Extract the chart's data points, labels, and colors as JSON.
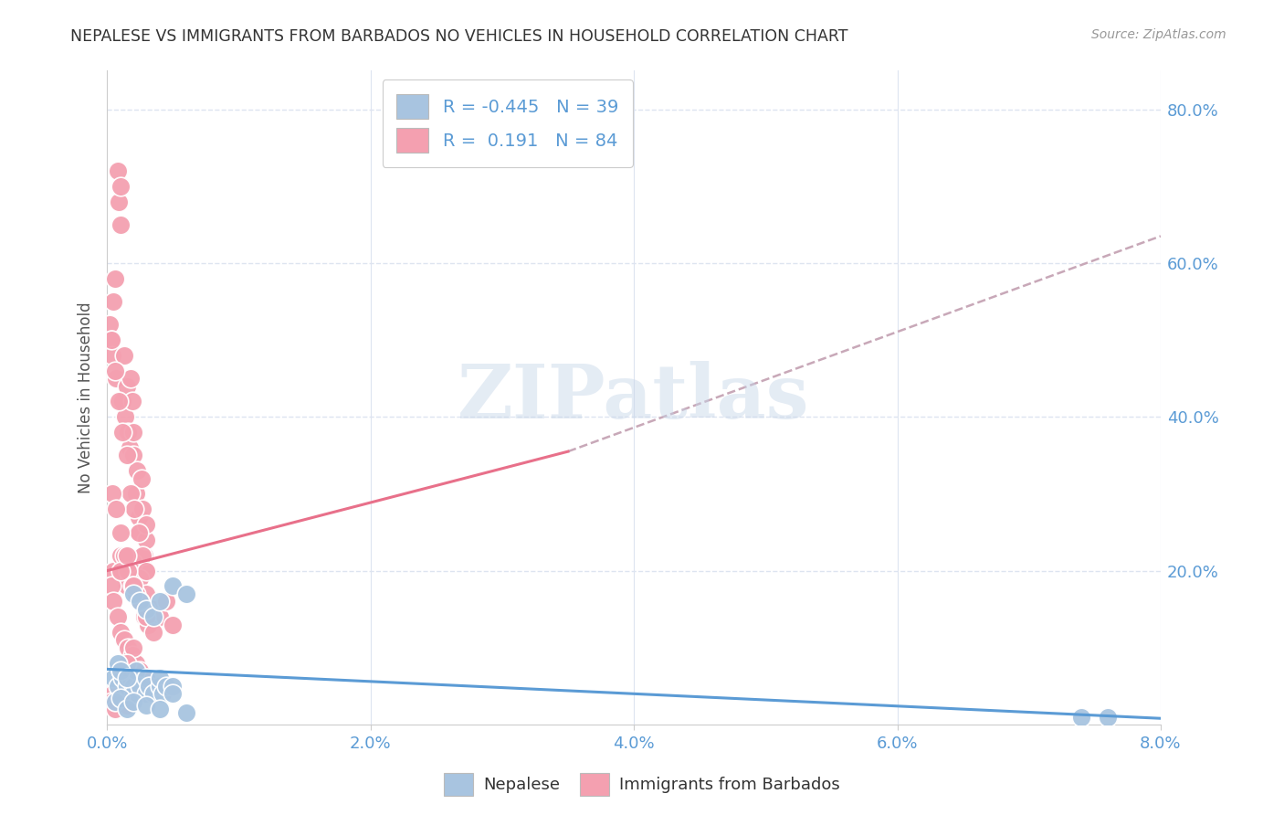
{
  "title": "NEPALESE VS IMMIGRANTS FROM BARBADOS NO VEHICLES IN HOUSEHOLD CORRELATION CHART",
  "source": "Source: ZipAtlas.com",
  "ylabel": "No Vehicles in Household",
  "xlim": [
    0.0,
    0.08
  ],
  "ylim": [
    0.0,
    0.85
  ],
  "xtick_labels": [
    "0.0%",
    "2.0%",
    "4.0%",
    "6.0%",
    "8.0%"
  ],
  "xtick_values": [
    0.0,
    0.02,
    0.04,
    0.06,
    0.08
  ],
  "ytick_labels": [
    "20.0%",
    "40.0%",
    "60.0%",
    "80.0%"
  ],
  "ytick_values": [
    0.2,
    0.4,
    0.6,
    0.8
  ],
  "nepalese_color": "#a8c4e0",
  "barbados_color": "#f4a0b0",
  "nepalese_R": -0.445,
  "nepalese_N": 39,
  "barbados_R": 0.191,
  "barbados_N": 84,
  "nepalese_line_color": "#5b9bd5",
  "barbados_line_color": "#e8708a",
  "dashed_line_color": "#c8a8b8",
  "background_color": "#ffffff",
  "grid_color": "#dde4f0",
  "watermark": "ZIPatlas",
  "nepalese_scatter_x": [
    0.0005,
    0.0008,
    0.001,
    0.0012,
    0.0015,
    0.0018,
    0.002,
    0.002,
    0.0022,
    0.0025,
    0.003,
    0.003,
    0.0032,
    0.0035,
    0.004,
    0.004,
    0.0042,
    0.0045,
    0.005,
    0.005,
    0.0008,
    0.001,
    0.0015,
    0.002,
    0.0025,
    0.003,
    0.0035,
    0.004,
    0.005,
    0.006,
    0.0006,
    0.001,
    0.0015,
    0.002,
    0.003,
    0.004,
    0.006,
    0.074,
    0.076
  ],
  "nepalese_scatter_y": [
    0.06,
    0.05,
    0.07,
    0.06,
    0.05,
    0.06,
    0.05,
    0.04,
    0.07,
    0.05,
    0.04,
    0.06,
    0.05,
    0.04,
    0.05,
    0.06,
    0.04,
    0.05,
    0.05,
    0.04,
    0.08,
    0.07,
    0.06,
    0.17,
    0.16,
    0.15,
    0.14,
    0.16,
    0.18,
    0.17,
    0.03,
    0.035,
    0.02,
    0.03,
    0.025,
    0.02,
    0.015,
    0.01,
    0.01
  ],
  "barbados_scatter_x": [
    0.0002,
    0.0003,
    0.0004,
    0.0005,
    0.0006,
    0.0007,
    0.0008,
    0.0009,
    0.001,
    0.001,
    0.0012,
    0.0013,
    0.0014,
    0.0015,
    0.0016,
    0.0017,
    0.0018,
    0.0019,
    0.002,
    0.002,
    0.0022,
    0.0023,
    0.0024,
    0.0025,
    0.0026,
    0.0027,
    0.0028,
    0.003,
    0.003,
    0.003,
    0.0005,
    0.001,
    0.0015,
    0.002,
    0.0025,
    0.003,
    0.0035,
    0.004,
    0.0045,
    0.005,
    0.0003,
    0.0006,
    0.0009,
    0.0012,
    0.0015,
    0.0018,
    0.0021,
    0.0024,
    0.0027,
    0.003,
    0.0004,
    0.0007,
    0.001,
    0.0013,
    0.0016,
    0.0019,
    0.0022,
    0.0025,
    0.0028,
    0.0031,
    0.0003,
    0.0005,
    0.0008,
    0.001,
    0.0013,
    0.0016,
    0.0019,
    0.0022,
    0.0025,
    0.003,
    0.001,
    0.0015,
    0.002,
    0.0025,
    0.003,
    0.0035,
    0.002,
    0.0015,
    0.001,
    0.0005,
    0.0003,
    0.0006,
    0.001,
    0.0015
  ],
  "barbados_scatter_y": [
    0.52,
    0.5,
    0.48,
    0.55,
    0.58,
    0.45,
    0.72,
    0.68,
    0.65,
    0.7,
    0.42,
    0.48,
    0.4,
    0.44,
    0.38,
    0.36,
    0.45,
    0.42,
    0.35,
    0.38,
    0.3,
    0.33,
    0.27,
    0.25,
    0.32,
    0.28,
    0.22,
    0.2,
    0.24,
    0.26,
    0.2,
    0.22,
    0.18,
    0.21,
    0.19,
    0.17,
    0.15,
    0.14,
    0.16,
    0.13,
    0.5,
    0.46,
    0.42,
    0.38,
    0.35,
    0.3,
    0.28,
    0.25,
    0.22,
    0.2,
    0.3,
    0.28,
    0.25,
    0.22,
    0.2,
    0.18,
    0.17,
    0.16,
    0.14,
    0.13,
    0.18,
    0.16,
    0.14,
    0.12,
    0.11,
    0.1,
    0.09,
    0.08,
    0.07,
    0.06,
    0.2,
    0.22,
    0.18,
    0.16,
    0.14,
    0.12,
    0.1,
    0.08,
    0.06,
    0.04,
    0.03,
    0.02,
    0.035,
    0.025
  ]
}
